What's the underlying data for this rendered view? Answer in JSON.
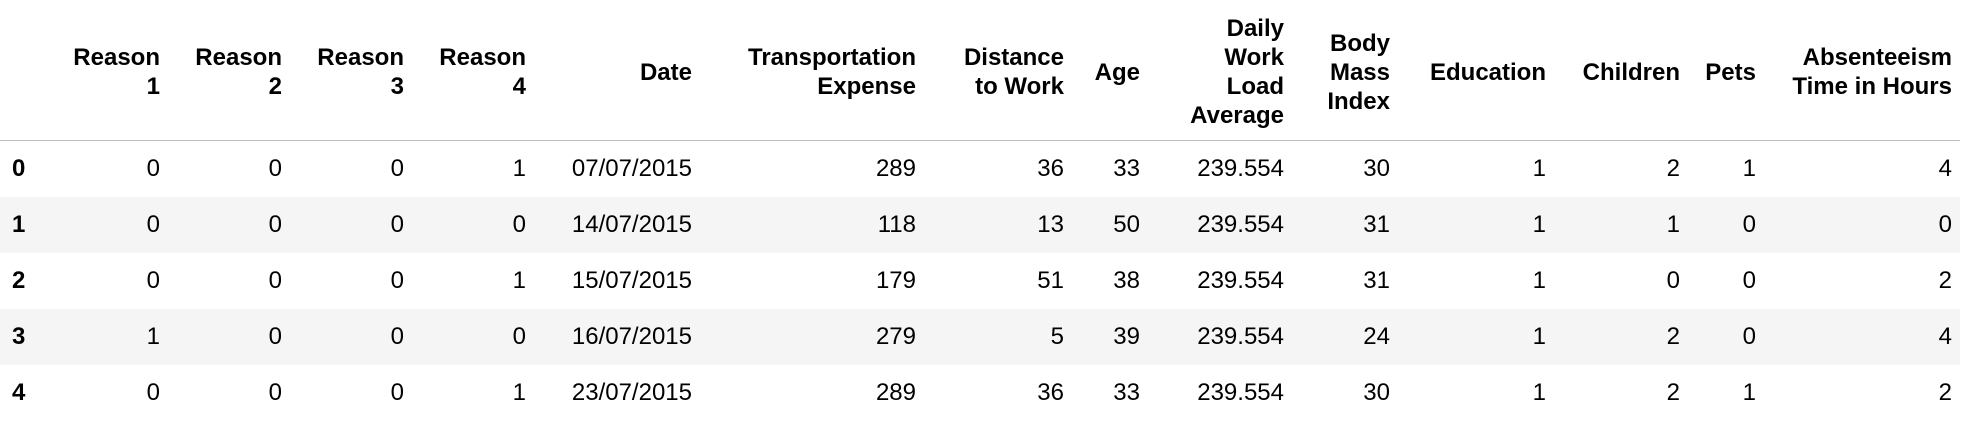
{
  "table": {
    "columns": [
      {
        "key": "reason_1",
        "label_lines": [
          "Reason",
          "1"
        ]
      },
      {
        "key": "reason_2",
        "label_lines": [
          "Reason",
          "2"
        ]
      },
      {
        "key": "reason_3",
        "label_lines": [
          "Reason",
          "3"
        ]
      },
      {
        "key": "reason_4",
        "label_lines": [
          "Reason",
          "4"
        ]
      },
      {
        "key": "date",
        "label_lines": [
          "Date"
        ]
      },
      {
        "key": "transportation_expense",
        "label_lines": [
          "Transportation",
          "Expense"
        ]
      },
      {
        "key": "distance_to_work",
        "label_lines": [
          "Distance",
          "to Work"
        ]
      },
      {
        "key": "age",
        "label_lines": [
          "Age"
        ]
      },
      {
        "key": "daily_work_load_average",
        "label_lines": [
          "Daily",
          "Work",
          "Load",
          "Average"
        ]
      },
      {
        "key": "body_mass_index",
        "label_lines": [
          "Body",
          "Mass",
          "Index"
        ]
      },
      {
        "key": "education",
        "label_lines": [
          "Education"
        ]
      },
      {
        "key": "children",
        "label_lines": [
          "Children"
        ]
      },
      {
        "key": "pets",
        "label_lines": [
          "Pets"
        ]
      },
      {
        "key": "absenteeism_time_in_hours",
        "label_lines": [
          "Absenteeism",
          "Time in Hours"
        ]
      }
    ],
    "rows": [
      {
        "index": "0",
        "cells": [
          "0",
          "0",
          "0",
          "1",
          "07/07/2015",
          "289",
          "36",
          "33",
          "239.554",
          "30",
          "1",
          "2",
          "1",
          "4"
        ]
      },
      {
        "index": "1",
        "cells": [
          "0",
          "0",
          "0",
          "0",
          "14/07/2015",
          "118",
          "13",
          "50",
          "239.554",
          "31",
          "1",
          "1",
          "0",
          "0"
        ]
      },
      {
        "index": "2",
        "cells": [
          "0",
          "0",
          "0",
          "1",
          "15/07/2015",
          "179",
          "51",
          "38",
          "239.554",
          "31",
          "1",
          "0",
          "0",
          "2"
        ]
      },
      {
        "index": "3",
        "cells": [
          "1",
          "0",
          "0",
          "0",
          "16/07/2015",
          "279",
          "5",
          "39",
          "239.554",
          "24",
          "1",
          "2",
          "0",
          "4"
        ]
      },
      {
        "index": "4",
        "cells": [
          "0",
          "0",
          "0",
          "1",
          "23/07/2015",
          "289",
          "36",
          "33",
          "239.554",
          "30",
          "1",
          "2",
          "1",
          "2"
        ]
      }
    ]
  }
}
